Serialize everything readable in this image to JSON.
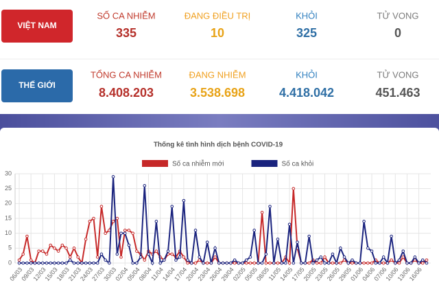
{
  "vietnam": {
    "label": "VIỆT NAM",
    "stats": [
      {
        "label": "SỐ CA NHIỄM",
        "value": "335"
      },
      {
        "label": "ĐANG ĐIỀU TRỊ",
        "value": "10"
      },
      {
        "label": "KHỎI",
        "value": "325"
      },
      {
        "label": "TỬ VONG",
        "value": "0"
      }
    ]
  },
  "world": {
    "label": "THẾ GIỚI",
    "stats": [
      {
        "label": "TỔNG CA NHIỄM",
        "value": "8.408.203"
      },
      {
        "label": "ĐANG NHIỄM",
        "value": "3.538.698"
      },
      {
        "label": "KHỎI",
        "value": "4.418.042"
      },
      {
        "label": "TỬ VONG",
        "value": "451.463"
      }
    ]
  },
  "chart_data": {
    "type": "line",
    "title": "Thống kê tình hình dịch bệnh COVID-19",
    "categories": [
      "06/03",
      null,
      null,
      "09/03",
      null,
      null,
      "12/03",
      null,
      null,
      "15/03",
      null,
      null,
      "18/03",
      null,
      null,
      "21/03",
      null,
      null,
      "24/03",
      null,
      null,
      "27/03",
      null,
      null,
      "30/03",
      null,
      null,
      "02/04",
      null,
      null,
      "05/04",
      null,
      null,
      "08/04",
      null,
      null,
      "11/04",
      null,
      null,
      "14/04",
      null,
      null,
      "17/04",
      null,
      null,
      "20/04",
      null,
      null,
      "23/04",
      null,
      null,
      "26/04",
      null,
      null,
      "29/04",
      null,
      null,
      "02/05",
      null,
      null,
      "05/05",
      null,
      null,
      "08/05",
      null,
      null,
      "11/05",
      null,
      null,
      "14/05",
      null,
      null,
      "17/05",
      null,
      null,
      "20/05",
      null,
      null,
      "23/05",
      null,
      null,
      "26/05",
      null,
      null,
      "29/05",
      null,
      null,
      "01/06",
      null,
      null,
      "04/06",
      null,
      null,
      "07/06",
      null,
      null,
      "10/06",
      null,
      null,
      "13/06",
      null,
      null,
      "16/06",
      null,
      null
    ],
    "series": [
      {
        "name": "Số ca nhiễm mới",
        "color": "#c62828",
        "values": [
          1,
          3,
          9,
          1,
          0,
          4,
          4,
          3,
          6,
          5,
          4,
          6,
          5,
          2,
          5,
          2,
          0,
          8,
          14,
          15,
          2,
          19,
          10,
          11,
          14,
          15,
          2,
          11,
          11,
          10,
          4,
          3,
          1,
          4,
          3,
          4,
          2,
          1,
          3,
          3,
          2,
          4,
          2,
          0,
          0,
          0,
          1,
          0,
          0,
          0,
          2,
          0,
          0,
          0,
          0,
          0,
          0,
          0,
          0,
          0,
          0,
          0,
          17,
          0,
          0,
          0,
          0,
          0,
          2,
          0,
          25,
          5,
          0,
          0,
          0,
          1,
          0,
          0,
          2,
          0,
          0,
          0,
          0,
          1,
          0,
          0,
          0,
          0,
          0,
          0,
          0,
          1,
          0,
          0,
          0,
          1,
          0,
          0,
          2,
          0,
          0,
          1,
          0,
          0,
          1
        ]
      },
      {
        "name": "Số ca khỏi",
        "color": "#1a237e",
        "values": [
          0,
          0,
          0,
          0,
          0,
          0,
          0,
          0,
          0,
          0,
          0,
          0,
          0,
          1,
          0,
          0,
          0,
          0,
          0,
          0,
          0,
          3,
          1,
          0,
          29,
          3,
          10,
          10,
          6,
          0,
          0,
          2,
          26,
          3,
          0,
          14,
          0,
          1,
          4,
          19,
          1,
          2,
          21,
          1,
          0,
          11,
          2,
          0,
          7,
          0,
          5,
          0,
          0,
          0,
          0,
          1,
          0,
          0,
          1,
          2,
          11,
          0,
          0,
          3,
          19,
          0,
          8,
          0,
          0,
          13,
          0,
          7,
          0,
          0,
          9,
          0,
          1,
          2,
          0,
          0,
          3,
          0,
          5,
          2,
          0,
          1,
          0,
          0,
          14,
          5,
          4,
          0,
          0,
          2,
          0,
          9,
          0,
          1,
          4,
          0,
          0,
          2,
          0,
          1,
          0
        ]
      }
    ],
    "ylim": [
      0,
      30
    ],
    "yticks": [
      0,
      5,
      10,
      15,
      20,
      25,
      30
    ],
    "grid": true
  }
}
